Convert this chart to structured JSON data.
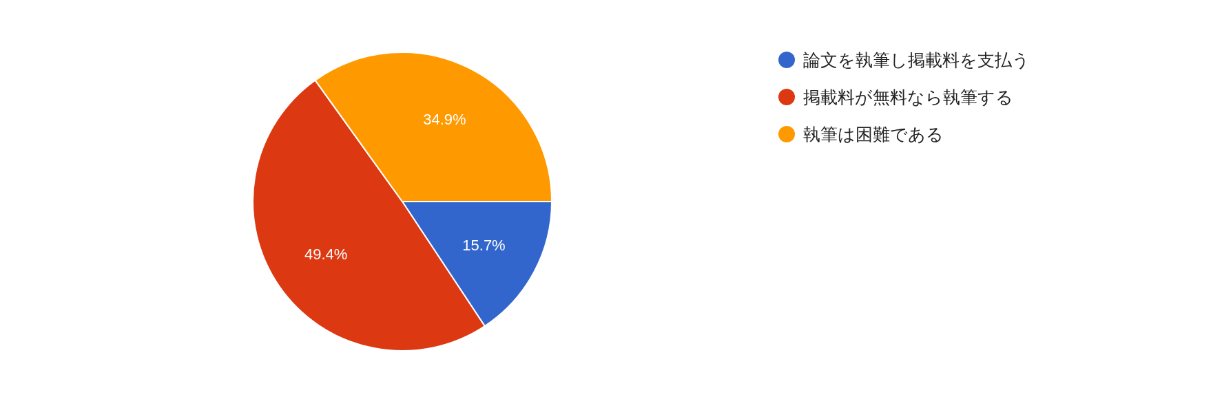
{
  "chart_data": {
    "type": "pie",
    "categories": [
      "論文を執筆し掲載料を支払う",
      "掲載料が無料なら執筆する",
      "執筆は困難である"
    ],
    "values": [
      15.7,
      49.4,
      34.9
    ],
    "colors": [
      "#3366cc",
      "#dc3912",
      "#ff9900"
    ],
    "value_labels": [
      "15.7%",
      "49.4%",
      "34.9%"
    ],
    "legend": "top right"
  }
}
